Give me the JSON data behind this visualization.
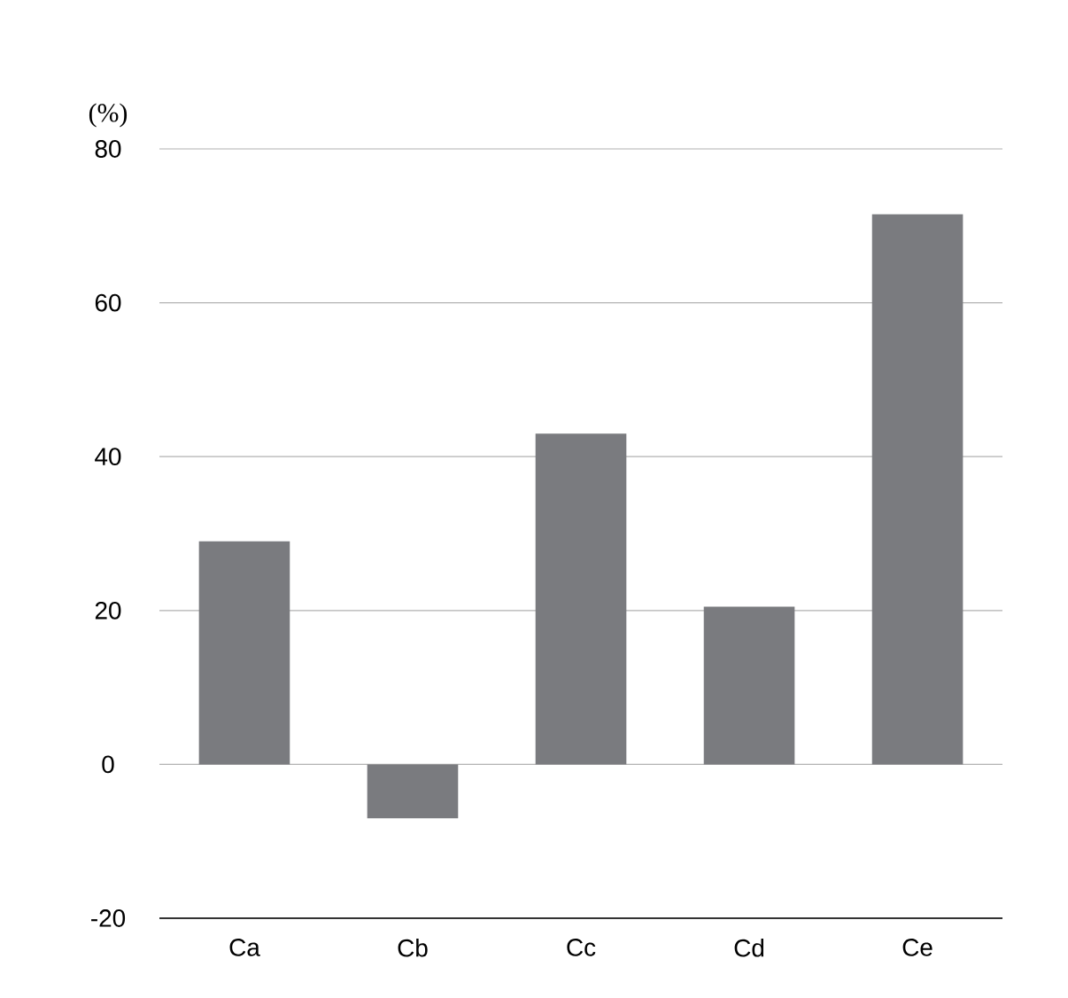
{
  "chart_data": {
    "type": "bar",
    "ylabel": "(%)",
    "categories": [
      "Ca",
      "Cb",
      "Cc",
      "Cd",
      "Ce"
    ],
    "values": [
      29,
      -7,
      43,
      20.5,
      71.5
    ],
    "color": "#7a7b7f",
    "ylim": [
      -20,
      80
    ],
    "yticks": [
      -20,
      0,
      20,
      40,
      60,
      80
    ],
    "grid": "y"
  }
}
